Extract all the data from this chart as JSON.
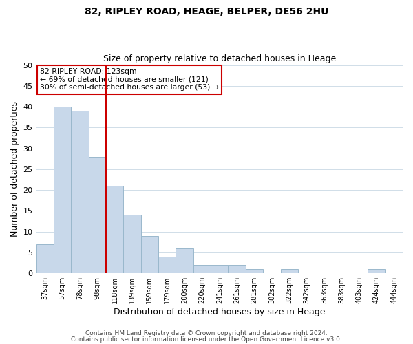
{
  "title": "82, RIPLEY ROAD, HEAGE, BELPER, DE56 2HU",
  "subtitle": "Size of property relative to detached houses in Heage",
  "xlabel": "Distribution of detached houses by size in Heage",
  "ylabel": "Number of detached properties",
  "bar_labels": [
    "37sqm",
    "57sqm",
    "78sqm",
    "98sqm",
    "118sqm",
    "139sqm",
    "159sqm",
    "179sqm",
    "200sqm",
    "220sqm",
    "241sqm",
    "261sqm",
    "281sqm",
    "302sqm",
    "322sqm",
    "342sqm",
    "363sqm",
    "383sqm",
    "403sqm",
    "424sqm",
    "444sqm"
  ],
  "bar_values": [
    7,
    40,
    39,
    28,
    21,
    14,
    9,
    4,
    6,
    2,
    2,
    2,
    1,
    0,
    1,
    0,
    0,
    0,
    0,
    1,
    0
  ],
  "bar_color": "#c8d8ea",
  "bar_edge_color": "#9ab8cc",
  "highlight_index": 4,
  "highlight_line_color": "#cc0000",
  "annotation_text": "82 RIPLEY ROAD: 123sqm\n← 69% of detached houses are smaller (121)\n30% of semi-detached houses are larger (53) →",
  "annotation_box_color": "#ffffff",
  "annotation_box_edge_color": "#cc0000",
  "ylim": [
    0,
    50
  ],
  "yticks": [
    0,
    5,
    10,
    15,
    20,
    25,
    30,
    35,
    40,
    45,
    50
  ],
  "footer_line1": "Contains HM Land Registry data © Crown copyright and database right 2024.",
  "footer_line2": "Contains public sector information licensed under the Open Government Licence v3.0.",
  "background_color": "#ffffff",
  "grid_color": "#d0dde8"
}
